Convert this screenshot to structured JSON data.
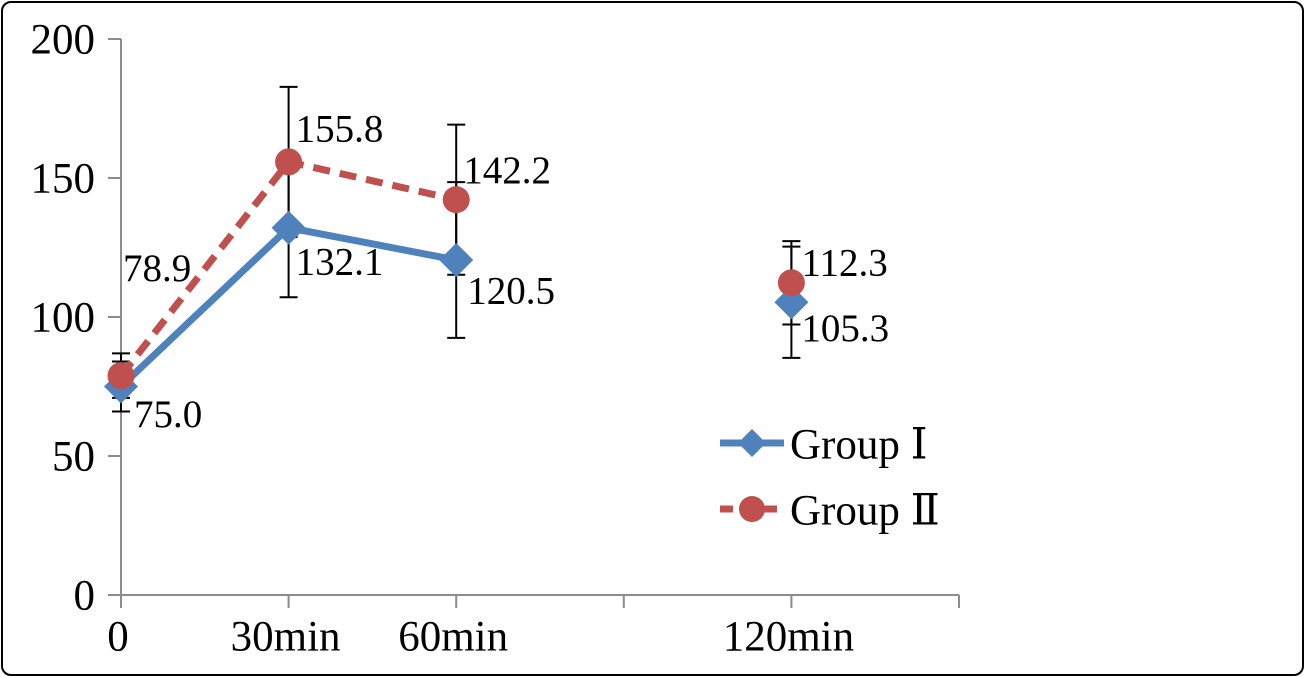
{
  "chart_data": {
    "type": "line",
    "title": "",
    "xlabel": "",
    "ylabel": "",
    "grid": false,
    "x_values": [
      0,
      30,
      60,
      120
    ],
    "x_axis": {
      "range": [
        0,
        150
      ],
      "ticks": [
        {
          "t": 0,
          "label": "0"
        },
        {
          "t": 30,
          "label": "30min"
        },
        {
          "t": 60,
          "label": "60min"
        },
        {
          "t": 90,
          "label": ""
        },
        {
          "t": 120,
          "label": "120min"
        },
        {
          "t": 150,
          "label": ""
        }
      ]
    },
    "y_axis": {
      "range": [
        0,
        200
      ],
      "ticks": [
        {
          "v": 0,
          "label": "0"
        },
        {
          "v": 50,
          "label": "50"
        },
        {
          "v": 100,
          "label": "100"
        },
        {
          "v": 150,
          "label": "150"
        },
        {
          "v": 200,
          "label": "200"
        }
      ]
    },
    "series": [
      {
        "name": "Group Ⅰ",
        "color": "#4F81BD",
        "marker": "diamond",
        "line_style": "solid",
        "values": [
          75.0,
          132.1,
          120.5,
          105.3
        ],
        "data_labels": [
          "75.0",
          "132.1",
          "120.5",
          "105.3"
        ],
        "error_bars": [
          9,
          25,
          28,
          20
        ],
        "connected_point_indexes": [
          0,
          1,
          2
        ],
        "label_offsets": [
          [
            13,
            28
          ],
          [
            7,
            34
          ],
          [
            11,
            31
          ],
          [
            10,
            26
          ]
        ]
      },
      {
        "name": "Group Ⅱ",
        "color": "#C0504D",
        "marker": "circle",
        "line_style": "dashed",
        "values": [
          78.9,
          155.8,
          142.2,
          112.3
        ],
        "data_labels": [
          "78.9",
          "155.8",
          "142.2",
          "112.3"
        ],
        "error_bars": [
          8,
          27,
          27,
          15
        ],
        "connected_point_indexes": [
          0,
          1,
          2
        ],
        "label_offsets": [
          [
            2,
            -107
          ],
          [
            7,
            -33
          ],
          [
            7,
            -29
          ],
          [
            10,
            -20
          ]
        ]
      }
    ],
    "legend": {
      "position": "center-right",
      "entries": [
        {
          "label": "Group Ⅰ"
        },
        {
          "label": "Group Ⅱ"
        }
      ]
    },
    "colors": {
      "axis": "#8C8C8C",
      "error_bar": "#000000",
      "text": "#000000",
      "background": "#FFFFFF",
      "border": "#000000"
    }
  }
}
